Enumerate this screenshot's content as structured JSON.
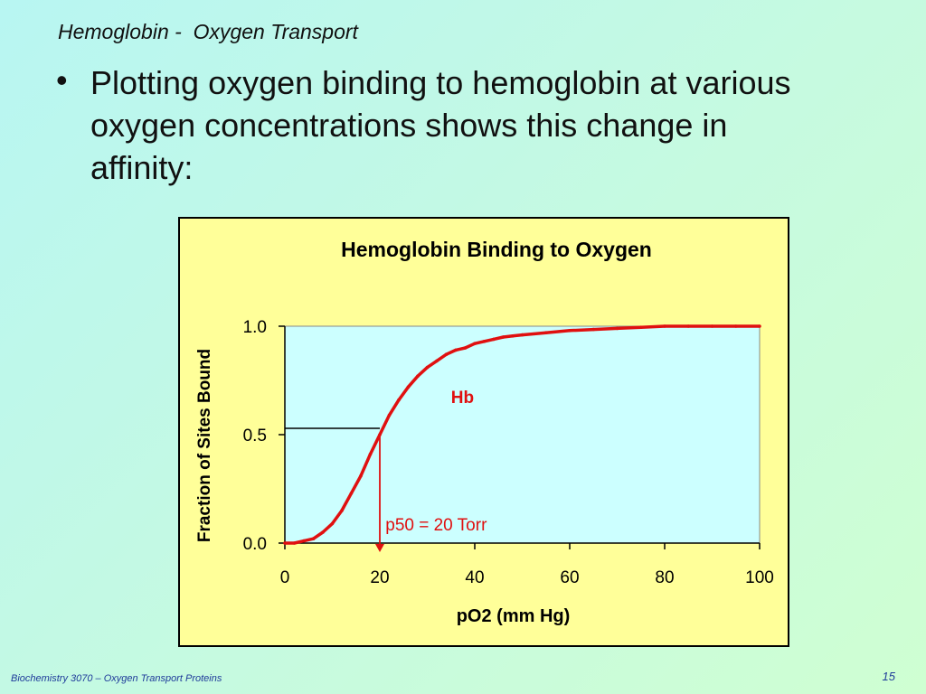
{
  "slide": {
    "title": "Hemoglobin -  Oxygen Transport",
    "bullet_marker": "•",
    "bullet_text": "Plotting oxygen binding to hemoglobin at various oxygen concentrations shows this change in affinity:",
    "footer_left": "Biochemistry 3070 – Oxygen Transport Proteins",
    "page_number": "15"
  },
  "colors": {
    "chart_background": "#ffff99",
    "plot_area": "#ccffff",
    "curve": "#e01010",
    "annotation": "#e01010",
    "reference_line": "#000000"
  },
  "chart_data": {
    "type": "line",
    "title": "Hemoglobin Binding to Oxygen",
    "xlabel": "pO2 (mm Hg)",
    "ylabel": "Fraction of Sites Bound",
    "xlim": [
      0,
      100
    ],
    "ylim": [
      0,
      1
    ],
    "x_ticks": [
      "0",
      "20",
      "40",
      "60",
      "80",
      "100"
    ],
    "y_ticks": [
      "0.0",
      "0.5",
      "1.0"
    ],
    "grid": false,
    "series": [
      {
        "name": "Hb",
        "x": [
          0,
          2,
          4,
          6,
          8,
          10,
          12,
          14,
          16,
          18,
          20,
          22,
          24,
          26,
          28,
          30,
          32,
          34,
          36,
          38,
          40,
          42,
          44,
          46,
          48,
          50,
          55,
          60,
          65,
          70,
          75,
          80,
          85,
          90,
          95,
          100
        ],
        "y": [
          0.0,
          0.0,
          0.01,
          0.02,
          0.05,
          0.09,
          0.15,
          0.23,
          0.31,
          0.41,
          0.5,
          0.59,
          0.66,
          0.72,
          0.77,
          0.81,
          0.84,
          0.87,
          0.89,
          0.9,
          0.92,
          0.93,
          0.94,
          0.95,
          0.955,
          0.96,
          0.97,
          0.98,
          0.985,
          0.99,
          0.995,
          1.0,
          1.0,
          1.0,
          1.0,
          1.0
        ]
      }
    ],
    "annotations": [
      {
        "text": "Hb",
        "x": 35,
        "y": 0.72
      },
      {
        "text": "p50 = 20 Torr",
        "x": 21,
        "y": 0.08
      }
    ],
    "reference": {
      "p50_x": 20,
      "p50_y": 0.5
    }
  }
}
